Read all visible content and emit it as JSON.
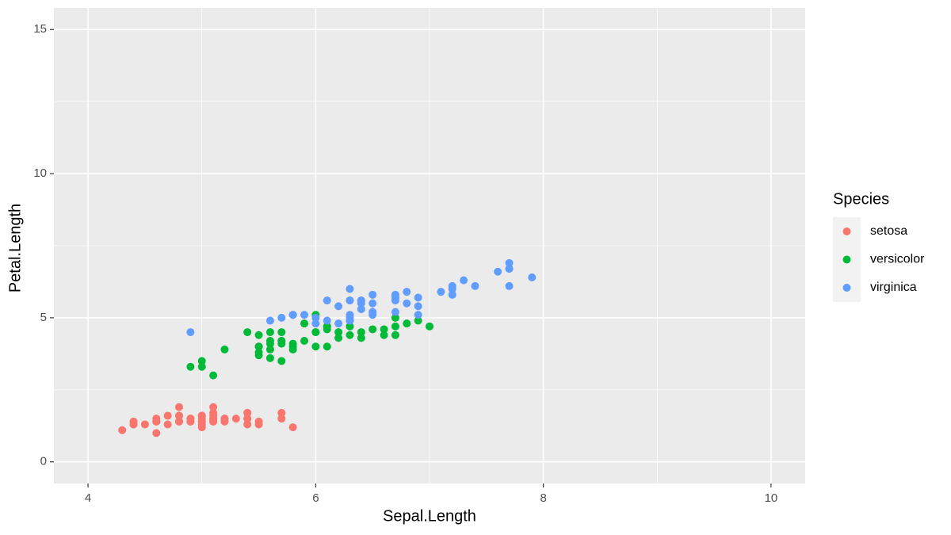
{
  "chart_data": {
    "type": "scatter",
    "x_label": "Sepal.Length",
    "y_label": "Petal.Length",
    "legend_title": "Species",
    "xlim": [
      3.7,
      10.3
    ],
    "ylim": [
      -0.75,
      15.75
    ],
    "xticks": [
      4,
      6,
      8,
      10
    ],
    "yticks": [
      0,
      5,
      10,
      15
    ],
    "x_minor_grid": [
      5,
      7,
      9
    ],
    "y_minor_grid": [
      2.5,
      7.5,
      12.5
    ],
    "grid": true,
    "legend_position": "right",
    "series": [
      {
        "name": "setosa",
        "color": "#F8766D",
        "x": [
          5.1,
          4.9,
          4.7,
          4.6,
          5.0,
          5.4,
          4.6,
          5.0,
          4.4,
          4.9,
          5.4,
          4.8,
          4.8,
          4.3,
          5.8,
          5.7,
          5.4,
          5.1,
          5.7,
          5.1,
          5.4,
          5.1,
          4.6,
          5.1,
          4.8,
          5.0,
          5.0,
          5.2,
          5.2,
          4.7,
          4.8,
          5.4,
          5.2,
          5.5,
          4.9,
          5.0,
          5.5,
          4.9,
          4.4,
          5.1,
          5.0,
          4.5,
          4.4,
          5.0,
          5.1,
          4.8,
          5.1,
          4.6,
          5.3,
          5.0
        ],
        "y": [
          1.4,
          1.4,
          1.3,
          1.5,
          1.4,
          1.7,
          1.4,
          1.5,
          1.4,
          1.5,
          1.5,
          1.6,
          1.4,
          1.1,
          1.2,
          1.5,
          1.3,
          1.4,
          1.7,
          1.5,
          1.7,
          1.5,
          1.0,
          1.7,
          1.9,
          1.6,
          1.6,
          1.5,
          1.4,
          1.6,
          1.6,
          1.5,
          1.5,
          1.4,
          1.5,
          1.2,
          1.3,
          1.4,
          1.3,
          1.5,
          1.3,
          1.3,
          1.3,
          1.6,
          1.9,
          1.4,
          1.6,
          1.4,
          1.5,
          1.4
        ]
      },
      {
        "name": "versicolor",
        "color": "#00BA38",
        "x": [
          7.0,
          6.4,
          6.9,
          5.5,
          6.5,
          5.7,
          6.3,
          4.9,
          6.6,
          5.2,
          5.0,
          5.9,
          6.0,
          6.1,
          5.6,
          6.7,
          5.6,
          5.8,
          6.2,
          5.6,
          5.9,
          6.1,
          6.3,
          6.1,
          6.4,
          6.6,
          6.8,
          6.7,
          6.0,
          5.7,
          5.5,
          5.5,
          5.8,
          6.0,
          5.4,
          6.0,
          6.7,
          6.3,
          5.6,
          5.5,
          5.5,
          6.1,
          5.8,
          5.0,
          5.6,
          5.7,
          5.7,
          6.2,
          5.1,
          5.7
        ],
        "y": [
          4.7,
          4.5,
          4.9,
          4.0,
          4.6,
          4.5,
          4.7,
          3.3,
          4.6,
          3.9,
          3.5,
          4.2,
          4.0,
          4.7,
          3.6,
          4.4,
          4.5,
          4.1,
          4.5,
          3.9,
          4.8,
          4.0,
          4.9,
          4.7,
          4.3,
          4.4,
          4.8,
          5.0,
          4.5,
          3.5,
          3.8,
          3.7,
          3.9,
          5.1,
          4.5,
          4.5,
          4.7,
          4.4,
          4.1,
          4.0,
          4.4,
          4.6,
          4.0,
          3.3,
          4.2,
          4.2,
          4.2,
          4.3,
          3.0,
          4.1
        ]
      },
      {
        "name": "virginica",
        "color": "#619CFF",
        "x": [
          6.3,
          5.8,
          7.1,
          6.3,
          6.5,
          7.6,
          4.9,
          7.3,
          6.7,
          7.2,
          6.5,
          6.4,
          6.8,
          5.7,
          5.8,
          6.4,
          6.5,
          7.7,
          7.7,
          6.0,
          6.9,
          5.6,
          7.7,
          6.3,
          6.7,
          7.2,
          6.2,
          6.1,
          6.4,
          7.2,
          7.4,
          7.9,
          6.4,
          6.3,
          6.1,
          7.7,
          6.3,
          6.4,
          6.0,
          6.9,
          6.7,
          6.9,
          5.8,
          6.8,
          6.7,
          6.7,
          6.3,
          6.5,
          6.2,
          5.9
        ],
        "y": [
          6.0,
          5.1,
          5.9,
          5.6,
          5.8,
          6.6,
          4.5,
          6.3,
          5.8,
          6.1,
          5.1,
          5.3,
          5.5,
          5.0,
          5.1,
          5.3,
          5.5,
          6.7,
          6.9,
          5.0,
          5.7,
          4.9,
          6.7,
          4.9,
          5.7,
          6.0,
          4.8,
          4.9,
          5.6,
          5.8,
          6.1,
          6.4,
          5.6,
          5.1,
          5.6,
          6.1,
          5.6,
          5.5,
          4.8,
          5.4,
          5.6,
          5.1,
          5.1,
          5.9,
          5.7,
          5.2,
          5.0,
          5.2,
          5.4,
          5.1
        ]
      }
    ]
  }
}
